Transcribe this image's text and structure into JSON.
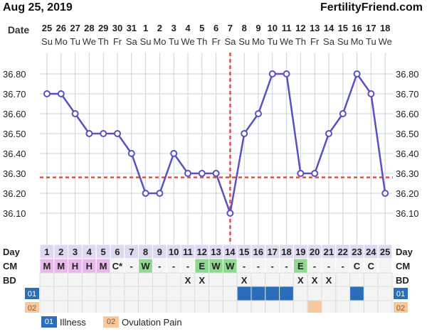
{
  "header": {
    "date_label": "Aug 25, 2019",
    "site": "FertilityFriend.com"
  },
  "chart_data": {
    "type": "line",
    "x_label": "Date",
    "dates": [
      "25",
      "26",
      "27",
      "28",
      "29",
      "30",
      "31",
      "1",
      "2",
      "3",
      "4",
      "5",
      "6",
      "7",
      "8",
      "9",
      "10",
      "11",
      "12",
      "13",
      "14",
      "15",
      "16",
      "17",
      "18"
    ],
    "weekdays": [
      "Su",
      "Mo",
      "Tu",
      "We",
      "Th",
      "Fr",
      "Sa",
      "Su",
      "Mo",
      "Tu",
      "We",
      "Th",
      "Fr",
      "Sa",
      "Su",
      "Mo",
      "Tu",
      "We",
      "Th",
      "Fr",
      "Sa",
      "Su",
      "Mo",
      "Tu",
      "We"
    ],
    "temps": [
      36.7,
      36.7,
      36.6,
      36.5,
      36.5,
      36.5,
      36.4,
      36.2,
      36.2,
      36.4,
      36.3,
      36.3,
      36.3,
      36.1,
      36.5,
      36.6,
      36.8,
      36.8,
      36.3,
      36.3,
      36.5,
      36.6,
      36.8,
      36.7,
      36.2
    ],
    "y_ticks": [
      "36.80",
      "36.70",
      "36.60",
      "36.50",
      "36.40",
      "36.30",
      "36.20",
      "36.10"
    ],
    "ylim": [
      36.1,
      36.8
    ],
    "coverline": 36.28,
    "ovulation_day_index": 13,
    "day_label": "Day",
    "days": [
      "1",
      "2",
      "3",
      "4",
      "5",
      "6",
      "7",
      "8",
      "9",
      "10",
      "11",
      "12",
      "13",
      "14",
      "15",
      "16",
      "17",
      "18",
      "19",
      "20",
      "21",
      "22",
      "23",
      "24",
      "25"
    ],
    "cm_label": "CM",
    "cm": [
      "M",
      "M",
      "H",
      "H",
      "M",
      "C*",
      "-",
      "W",
      "-",
      "-",
      "-",
      "E",
      "W",
      "W",
      "-",
      "-",
      "-",
      "-",
      "E",
      "-",
      "-",
      "-",
      "C",
      "C",
      ""
    ],
    "bd_label": "BD",
    "bd": [
      "",
      "",
      "",
      "",
      "",
      "",
      "",
      "",
      "",
      "",
      "X",
      "X",
      "",
      "",
      "X",
      "",
      "",
      "",
      "X",
      "X",
      "X",
      "",
      "",
      "",
      ""
    ],
    "illness_label": "01",
    "illness": [
      false,
      false,
      false,
      false,
      false,
      false,
      false,
      false,
      false,
      false,
      false,
      false,
      false,
      false,
      true,
      true,
      true,
      true,
      false,
      false,
      false,
      false,
      true,
      false,
      false
    ],
    "ovpain_label": "02",
    "ovpain": [
      false,
      false,
      false,
      false,
      false,
      false,
      false,
      false,
      false,
      false,
      false,
      false,
      false,
      false,
      false,
      false,
      false,
      false,
      false,
      true,
      false,
      false,
      false,
      false,
      false
    ],
    "colors": {
      "line": "#5a4fc4",
      "marker_fill": "#ffffff",
      "grid": "#c8d3d8",
      "coverline": "#d9534f",
      "ovulation": "#d9534f",
      "day_bg": "#ded9ee",
      "cm_menstrual": "#e7b8ea",
      "cm_egg": "#8fd88f",
      "illness": "#2a6ebb",
      "ovpain": "#f7c79e",
      "row_bg": "#f4f4f4"
    }
  },
  "legend": [
    {
      "code": "01",
      "label": "Illness"
    },
    {
      "code": "02",
      "label": "Ovulation Pain"
    }
  ]
}
